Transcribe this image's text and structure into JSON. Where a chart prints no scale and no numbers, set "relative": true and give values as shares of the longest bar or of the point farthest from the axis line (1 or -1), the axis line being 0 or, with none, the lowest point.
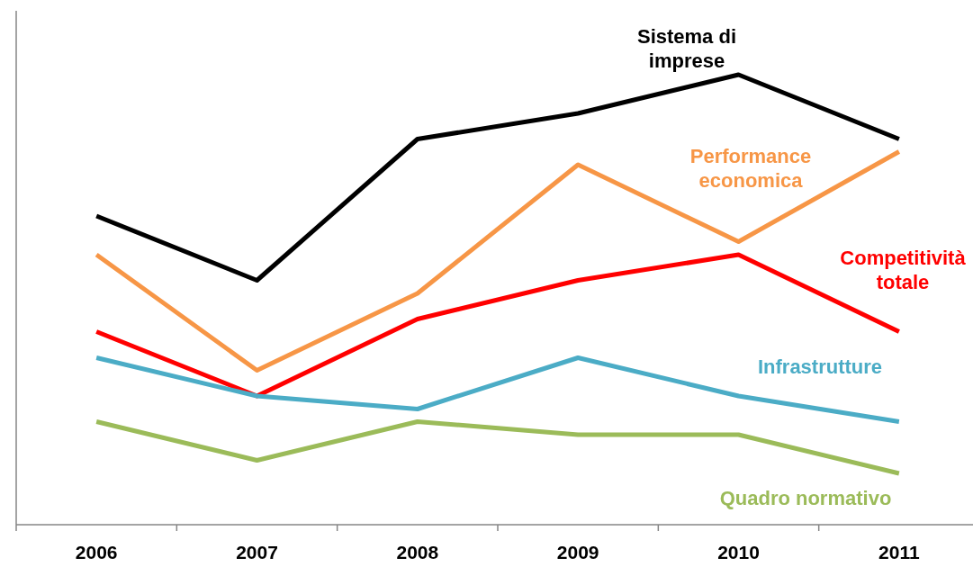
{
  "chart_data": {
    "type": "line",
    "relative": true,
    "categories": [
      "2006",
      "2007",
      "2008",
      "2009",
      "2010",
      "2011"
    ],
    "line_style": "solid",
    "marker": "none",
    "legend": false,
    "series": [
      {
        "name": "Sistema di imprese",
        "color": "#000000",
        "values": [
          0.686,
          0.543,
          0.857,
          0.914,
          1,
          0.857
        ]
      },
      {
        "name": "Performance economica",
        "color": "#f79646",
        "values": [
          0.6,
          0.343,
          0.514,
          0.8,
          0.629,
          0.829
        ]
      },
      {
        "name": "Competitività totale",
        "color": "#ff0000",
        "values": [
          0.429,
          0.286,
          0.457,
          0.543,
          0.6,
          0.429
        ]
      },
      {
        "name": "Infrastrutture",
        "color": "#4bacc6",
        "values": [
          0.371,
          0.286,
          0.257,
          0.371,
          0.286,
          0.229
        ]
      },
      {
        "name": "Quadro normativo",
        "color": "#9bbb59",
        "values": [
          0.229,
          0.143,
          0.229,
          0.2,
          0.2,
          0.114
        ]
      }
    ]
  }
}
